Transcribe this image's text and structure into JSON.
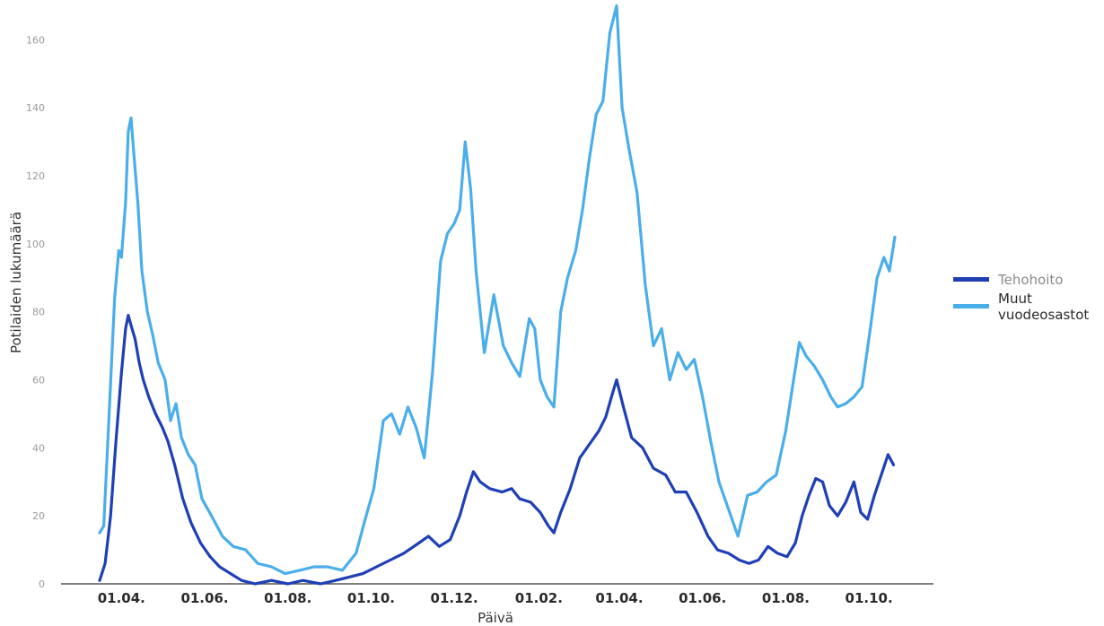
{
  "chart_data": {
    "type": "line",
    "xlabel": "Päivä",
    "ylabel": "Potilaiden lukumäärä",
    "ylim": [
      0,
      168
    ],
    "y_ticks": [
      0,
      20,
      40,
      60,
      80,
      100,
      120,
      140,
      160
    ],
    "x_range": [
      "2020-03-16",
      "2021-10-20"
    ],
    "x_ticks": [
      {
        "date": "2020-04-01",
        "label": "01.04."
      },
      {
        "date": "2020-06-01",
        "label": "01.06."
      },
      {
        "date": "2020-08-01",
        "label": "01.08."
      },
      {
        "date": "2020-10-01",
        "label": "01.10."
      },
      {
        "date": "2020-12-01",
        "label": "01.12."
      },
      {
        "date": "2021-02-01",
        "label": "01.02."
      },
      {
        "date": "2021-04-01",
        "label": "01.04."
      },
      {
        "date": "2021-06-01",
        "label": "01.06."
      },
      {
        "date": "2021-08-01",
        "label": "01.08."
      },
      {
        "date": "2021-10-01",
        "label": "01.10."
      }
    ],
    "grid": false,
    "legend": "right",
    "series": [
      {
        "name": "Tehohoito",
        "color": "#1f3fb5",
        "points": [
          [
            "2020-03-16",
            1
          ],
          [
            "2020-03-20",
            6
          ],
          [
            "2020-03-24",
            20
          ],
          [
            "2020-03-28",
            42
          ],
          [
            "2020-04-01",
            62
          ],
          [
            "2020-04-04",
            75
          ],
          [
            "2020-04-06",
            79
          ],
          [
            "2020-04-08",
            76
          ],
          [
            "2020-04-11",
            72
          ],
          [
            "2020-04-14",
            65
          ],
          [
            "2020-04-17",
            60
          ],
          [
            "2020-04-21",
            55
          ],
          [
            "2020-04-26",
            50
          ],
          [
            "2020-05-01",
            46
          ],
          [
            "2020-05-05",
            42
          ],
          [
            "2020-05-10",
            35
          ],
          [
            "2020-05-16",
            25
          ],
          [
            "2020-05-22",
            18
          ],
          [
            "2020-05-29",
            12
          ],
          [
            "2020-06-05",
            8
          ],
          [
            "2020-06-12",
            5
          ],
          [
            "2020-06-20",
            3
          ],
          [
            "2020-06-28",
            1
          ],
          [
            "2020-07-08",
            0
          ],
          [
            "2020-07-20",
            1
          ],
          [
            "2020-08-01",
            0
          ],
          [
            "2020-08-12",
            1
          ],
          [
            "2020-08-25",
            0
          ],
          [
            "2020-09-05",
            1
          ],
          [
            "2020-09-15",
            2
          ],
          [
            "2020-09-25",
            3
          ],
          [
            "2020-10-05",
            5
          ],
          [
            "2020-10-15",
            7
          ],
          [
            "2020-10-25",
            9
          ],
          [
            "2020-11-05",
            12
          ],
          [
            "2020-11-12",
            14
          ],
          [
            "2020-11-20",
            11
          ],
          [
            "2020-11-28",
            13
          ],
          [
            "2020-12-05",
            20
          ],
          [
            "2020-12-10",
            27
          ],
          [
            "2020-12-15",
            33
          ],
          [
            "2020-12-20",
            30
          ],
          [
            "2020-12-27",
            28
          ],
          [
            "2021-01-05",
            27
          ],
          [
            "2021-01-12",
            28
          ],
          [
            "2021-01-18",
            25
          ],
          [
            "2021-01-26",
            24
          ],
          [
            "2021-02-02",
            21
          ],
          [
            "2021-02-08",
            17
          ],
          [
            "2021-02-12",
            15
          ],
          [
            "2021-02-17",
            21
          ],
          [
            "2021-02-24",
            28
          ],
          [
            "2021-03-03",
            37
          ],
          [
            "2021-03-10",
            41
          ],
          [
            "2021-03-17",
            45
          ],
          [
            "2021-03-22",
            49
          ],
          [
            "2021-03-27",
            56
          ],
          [
            "2021-03-30",
            60
          ],
          [
            "2021-04-04",
            52
          ],
          [
            "2021-04-10",
            43
          ],
          [
            "2021-04-18",
            40
          ],
          [
            "2021-04-26",
            34
          ],
          [
            "2021-05-05",
            32
          ],
          [
            "2021-05-12",
            27
          ],
          [
            "2021-05-20",
            27
          ],
          [
            "2021-05-28",
            21
          ],
          [
            "2021-06-05",
            14
          ],
          [
            "2021-06-12",
            10
          ],
          [
            "2021-06-20",
            9
          ],
          [
            "2021-06-28",
            7
          ],
          [
            "2021-07-05",
            6
          ],
          [
            "2021-07-12",
            7
          ],
          [
            "2021-07-19",
            11
          ],
          [
            "2021-07-26",
            9
          ],
          [
            "2021-08-02",
            8
          ],
          [
            "2021-08-08",
            12
          ],
          [
            "2021-08-13",
            20
          ],
          [
            "2021-08-18",
            26
          ],
          [
            "2021-08-23",
            31
          ],
          [
            "2021-08-28",
            30
          ],
          [
            "2021-09-02",
            23
          ],
          [
            "2021-09-08",
            20
          ],
          [
            "2021-09-14",
            24
          ],
          [
            "2021-09-20",
            30
          ],
          [
            "2021-09-25",
            21
          ],
          [
            "2021-09-30",
            19
          ],
          [
            "2021-10-05",
            26
          ],
          [
            "2021-10-10",
            32
          ],
          [
            "2021-10-15",
            38
          ],
          [
            "2021-10-19",
            35
          ]
        ]
      },
      {
        "name": "Muut vuodeosastot",
        "color": "#4aaeea",
        "points": [
          [
            "2020-03-16",
            15
          ],
          [
            "2020-03-19",
            17
          ],
          [
            "2020-03-23",
            50
          ],
          [
            "2020-03-27",
            84
          ],
          [
            "2020-03-30",
            98
          ],
          [
            "2020-04-01",
            96
          ],
          [
            "2020-04-04",
            112
          ],
          [
            "2020-04-06",
            133
          ],
          [
            "2020-04-08",
            137
          ],
          [
            "2020-04-10",
            127
          ],
          [
            "2020-04-13",
            112
          ],
          [
            "2020-04-16",
            92
          ],
          [
            "2020-04-20",
            80
          ],
          [
            "2020-04-24",
            73
          ],
          [
            "2020-04-28",
            65
          ],
          [
            "2020-05-03",
            60
          ],
          [
            "2020-05-07",
            48
          ],
          [
            "2020-05-11",
            53
          ],
          [
            "2020-05-15",
            43
          ],
          [
            "2020-05-20",
            38
          ],
          [
            "2020-05-25",
            35
          ],
          [
            "2020-05-30",
            25
          ],
          [
            "2020-06-06",
            20
          ],
          [
            "2020-06-14",
            14
          ],
          [
            "2020-06-22",
            11
          ],
          [
            "2020-07-01",
            10
          ],
          [
            "2020-07-10",
            6
          ],
          [
            "2020-07-20",
            5
          ],
          [
            "2020-07-30",
            3
          ],
          [
            "2020-08-10",
            4
          ],
          [
            "2020-08-20",
            5
          ],
          [
            "2020-08-30",
            5
          ],
          [
            "2020-09-10",
            4
          ],
          [
            "2020-09-20",
            9
          ],
          [
            "2020-09-26",
            18
          ],
          [
            "2020-10-03",
            28
          ],
          [
            "2020-10-10",
            48
          ],
          [
            "2020-10-16",
            50
          ],
          [
            "2020-10-22",
            44
          ],
          [
            "2020-10-28",
            52
          ],
          [
            "2020-11-03",
            46
          ],
          [
            "2020-11-09",
            37
          ],
          [
            "2020-11-15",
            62
          ],
          [
            "2020-11-21",
            95
          ],
          [
            "2020-11-26",
            103
          ],
          [
            "2020-12-01",
            106
          ],
          [
            "2020-12-05",
            110
          ],
          [
            "2020-12-09",
            130
          ],
          [
            "2020-12-13",
            116
          ],
          [
            "2020-12-17",
            92
          ],
          [
            "2020-12-23",
            68
          ],
          [
            "2020-12-30",
            85
          ],
          [
            "2021-01-06",
            70
          ],
          [
            "2021-01-12",
            65
          ],
          [
            "2021-01-18",
            61
          ],
          [
            "2021-01-25",
            78
          ],
          [
            "2021-01-29",
            75
          ],
          [
            "2021-02-02",
            60
          ],
          [
            "2021-02-07",
            55
          ],
          [
            "2021-02-12",
            52
          ],
          [
            "2021-02-17",
            80
          ],
          [
            "2021-02-22",
            90
          ],
          [
            "2021-02-28",
            98
          ],
          [
            "2021-03-05",
            110
          ],
          [
            "2021-03-10",
            125
          ],
          [
            "2021-03-15",
            138
          ],
          [
            "2021-03-20",
            142
          ],
          [
            "2021-03-25",
            162
          ],
          [
            "2021-03-30",
            170
          ],
          [
            "2021-04-03",
            140
          ],
          [
            "2021-04-08",
            128
          ],
          [
            "2021-04-14",
            115
          ],
          [
            "2021-04-20",
            88
          ],
          [
            "2021-04-26",
            70
          ],
          [
            "2021-05-02",
            75
          ],
          [
            "2021-05-08",
            60
          ],
          [
            "2021-05-14",
            68
          ],
          [
            "2021-05-20",
            63
          ],
          [
            "2021-05-26",
            66
          ],
          [
            "2021-06-01",
            55
          ],
          [
            "2021-06-07",
            42
          ],
          [
            "2021-06-13",
            30
          ],
          [
            "2021-06-20",
            22
          ],
          [
            "2021-06-27",
            14
          ],
          [
            "2021-07-04",
            26
          ],
          [
            "2021-07-11",
            27
          ],
          [
            "2021-07-18",
            30
          ],
          [
            "2021-07-25",
            32
          ],
          [
            "2021-08-01",
            45
          ],
          [
            "2021-08-06",
            58
          ],
          [
            "2021-08-11",
            71
          ],
          [
            "2021-08-16",
            67
          ],
          [
            "2021-08-22",
            64
          ],
          [
            "2021-08-28",
            60
          ],
          [
            "2021-09-03",
            55
          ],
          [
            "2021-09-08",
            52
          ],
          [
            "2021-09-14",
            53
          ],
          [
            "2021-09-20",
            55
          ],
          [
            "2021-09-26",
            58
          ],
          [
            "2021-10-02",
            75
          ],
          [
            "2021-10-07",
            90
          ],
          [
            "2021-10-12",
            96
          ],
          [
            "2021-10-16",
            92
          ],
          [
            "2021-10-20",
            102
          ]
        ]
      }
    ]
  },
  "legend": {
    "items": [
      {
        "label": "Tehohoito",
        "color": "#1f3fb5",
        "text_color": "#8a8a8a"
      },
      {
        "label_lines": [
          "Muut",
          "vuodeosastot"
        ],
        "color": "#4aaeea",
        "text_color": "#2a2a2a"
      }
    ]
  }
}
